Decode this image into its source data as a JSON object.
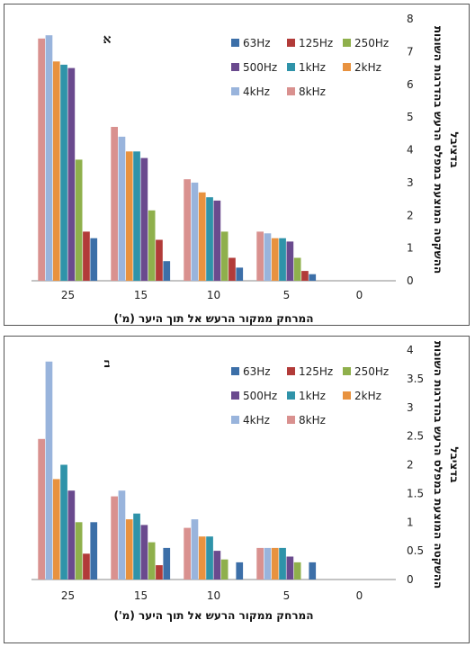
{
  "chart_data": [
    {
      "type": "bar",
      "title": "א",
      "xlabel": "המרחק ממקור הרעש אל תוך היער (מ')",
      "ylabel": "ההשקטה המוצעת במפלס הרעש בהדרגות השונות בדציבל",
      "categories": [
        "25",
        "15",
        "10",
        "5",
        "0"
      ],
      "ylim": [
        0,
        8
      ],
      "yticks": [
        "0",
        "1",
        "2",
        "3",
        "4",
        "5",
        "6",
        "7",
        "8"
      ],
      "series": [
        {
          "name": "8kHz",
          "color": "#d9918f",
          "values": [
            7.4,
            4.7,
            3.1,
            1.5,
            0
          ]
        },
        {
          "name": "4kHz",
          "color": "#99b4dc",
          "values": [
            7.5,
            4.4,
            3.0,
            1.45,
            0
          ]
        },
        {
          "name": "2kHz",
          "color": "#e8923f",
          "values": [
            6.7,
            3.95,
            2.7,
            1.3,
            0
          ]
        },
        {
          "name": "1kHz",
          "color": "#2f93a9",
          "values": [
            6.6,
            3.95,
            2.55,
            1.3,
            0
          ]
        },
        {
          "name": "500Hz",
          "color": "#6a4a8e",
          "values": [
            6.5,
            3.75,
            2.45,
            1.2,
            0
          ]
        },
        {
          "name": "250Hz",
          "color": "#8fb04c",
          "values": [
            3.7,
            2.15,
            1.5,
            0.7,
            0
          ]
        },
        {
          "name": "125Hz",
          "color": "#b23b39",
          "values": [
            1.5,
            1.25,
            0.7,
            0.3,
            0
          ]
        },
        {
          "name": "63Hz",
          "color": "#3c6fa8",
          "values": [
            1.3,
            0.6,
            0.4,
            0.2,
            0
          ]
        }
      ],
      "legend": [
        "63Hz",
        "125Hz",
        "250Hz",
        "500Hz",
        "1kHz",
        "2kHz",
        "4kHz",
        "8kHz"
      ],
      "legend_position": "top-right",
      "grid": false
    },
    {
      "type": "bar",
      "title": "ב",
      "xlabel": "המרחק ממקור הרעש אל תוך היער (מ')",
      "ylabel": "ההשקטה המוצעת במפלס הרעש בהדרגות השונות בדציבל",
      "categories": [
        "25",
        "15",
        "10",
        "5",
        "0"
      ],
      "ylim": [
        0,
        4
      ],
      "yticks": [
        "0",
        "0.5",
        "1",
        "1.5",
        "2",
        "2.5",
        "3",
        "3.5",
        "4"
      ],
      "series": [
        {
          "name": "8kHz",
          "color": "#d9918f",
          "values": [
            2.45,
            1.45,
            0.9,
            0.55,
            0
          ]
        },
        {
          "name": "4kHz",
          "color": "#99b4dc",
          "values": [
            3.8,
            1.55,
            1.05,
            0.55,
            0
          ]
        },
        {
          "name": "2kHz",
          "color": "#e8923f",
          "values": [
            1.75,
            1.05,
            0.75,
            0.55,
            0
          ]
        },
        {
          "name": "1kHz",
          "color": "#2f93a9",
          "values": [
            2.0,
            1.15,
            0.75,
            0.55,
            0
          ]
        },
        {
          "name": "500Hz",
          "color": "#6a4a8e",
          "values": [
            1.55,
            0.95,
            0.5,
            0.4,
            0
          ]
        },
        {
          "name": "250Hz",
          "color": "#8fb04c",
          "values": [
            1.0,
            0.65,
            0.35,
            0.3,
            0
          ]
        },
        {
          "name": "125Hz",
          "color": "#b23b39",
          "values": [
            0.45,
            0.25,
            0,
            0,
            0
          ]
        },
        {
          "name": "63Hz",
          "color": "#3c6fa8",
          "values": [
            1.0,
            0.55,
            0.3,
            0.3,
            0
          ]
        }
      ],
      "legend": [
        "63Hz",
        "125Hz",
        "250Hz",
        "500Hz",
        "1kHz",
        "2kHz",
        "4kHz",
        "8kHz"
      ],
      "legend_position": "top-right",
      "grid": false
    }
  ]
}
